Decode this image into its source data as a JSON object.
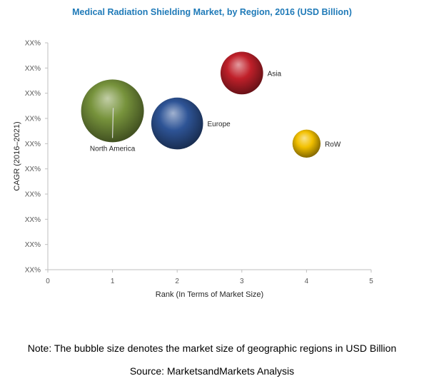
{
  "chart_data": {
    "type": "bubble",
    "title": "Medical Radiation Shielding Market, by Region, 2016 (USD Billion)",
    "xlabel": "Rank (In Terms of Market Size)",
    "ylabel": "CAGR (2016–2021)",
    "xlim": [
      0,
      5
    ],
    "x_ticks": [
      "0",
      "1",
      "2",
      "3",
      "4",
      "5"
    ],
    "y_ticks": [
      "XX%",
      "XX%",
      "XX%",
      "XX%",
      "XX%",
      "XX%",
      "XX%",
      "XX%",
      "XX%",
      "XX%"
    ],
    "grid": false,
    "series": [
      {
        "name": "North America",
        "x": 1,
        "y_level": 7.3,
        "size": 1.0,
        "color": "#77933c"
      },
      {
        "name": "Europe",
        "x": 2,
        "y_level": 6.8,
        "size": 0.68,
        "color": "#2e5496"
      },
      {
        "name": "Asia",
        "x": 3,
        "y_level": 8.8,
        "size": 0.46,
        "color": "#c0202a"
      },
      {
        "name": "RoW",
        "x": 4,
        "y_level": 6.0,
        "size": 0.2,
        "color": "#f2c000"
      }
    ]
  },
  "note": "Note: The bubble size denotes the market size of geographic regions in USD Billion",
  "source": "Source: MarketsandMarkets Analysis"
}
